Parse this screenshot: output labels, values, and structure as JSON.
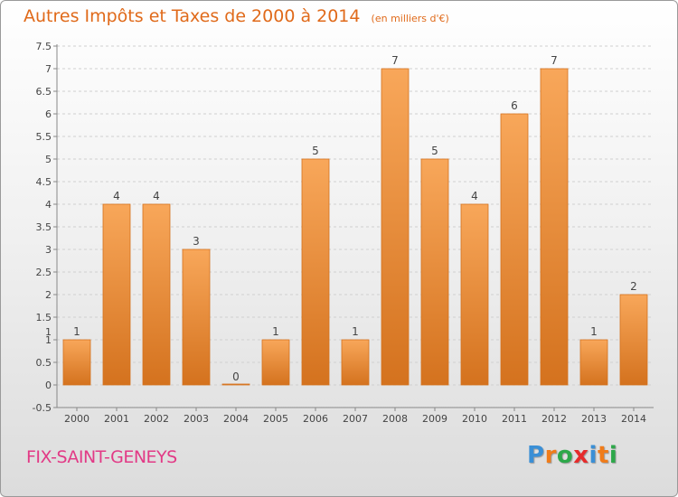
{
  "header": {
    "title": "Autres Impôts et Taxes de 2000 à 2014",
    "subtitle": "(en milliers d'€)"
  },
  "footer": {
    "commune": "FIX-SAINT-GENEYS",
    "logo_letters": [
      "P",
      "r",
      "o",
      "x",
      "i",
      "t",
      "i"
    ],
    "logo_colors": [
      "#3a8fd6",
      "#f07c1a",
      "#2da84a",
      "#e62b2b",
      "#3a8fd6",
      "#f07c1a",
      "#2da84a"
    ]
  },
  "colors": {
    "bar_light": "#f8a75a",
    "bar_dark": "#d4721e",
    "title": "#e06a1a",
    "commune": "#e23a86"
  },
  "chart_data": {
    "type": "bar",
    "categories": [
      "2000",
      "2001",
      "2002",
      "2003",
      "2004",
      "2005",
      "2006",
      "2007",
      "2008",
      "2009",
      "2010",
      "2011",
      "2012",
      "2013",
      "2014"
    ],
    "values": [
      1,
      4,
      4,
      3,
      0,
      1,
      5,
      1,
      7,
      5,
      4,
      6,
      7,
      1,
      2
    ],
    "value_labels": [
      "1",
      "4",
      "4",
      "3",
      "0",
      "1",
      "5",
      "1",
      "7",
      "5",
      "4",
      "6",
      "7",
      "1",
      "2"
    ],
    "yticks": [
      "-0.5",
      "0",
      "0.5",
      "1",
      "1",
      "1.5",
      "2",
      "2.5",
      "3",
      "3.5",
      "4",
      "4.5",
      "5",
      "5.5",
      "6",
      "6.5",
      "7",
      "7.5"
    ],
    "ylim": [
      -0.5,
      7.5
    ],
    "grid": true,
    "title": "Autres Impôts et Taxes de 2000 à 2014",
    "xlabel": "",
    "ylabel": ""
  }
}
